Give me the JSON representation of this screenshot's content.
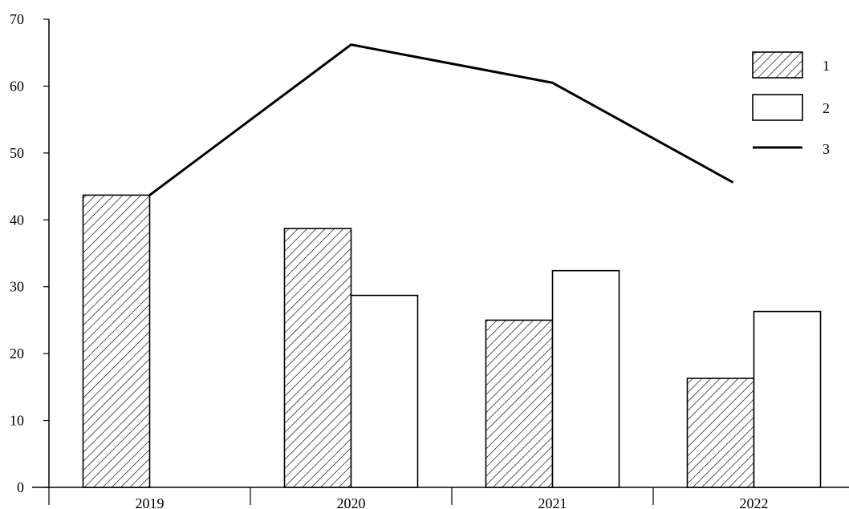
{
  "chart_data": {
    "type": "bar",
    "title": "",
    "xlabel": "",
    "ylabel": "",
    "categories": [
      "2019",
      "2020",
      "2021",
      "2022"
    ],
    "ylim": [
      0,
      70
    ],
    "yticks": [
      0,
      10,
      20,
      30,
      40,
      50,
      60,
      70
    ],
    "grid": false,
    "legend_position": "top-right",
    "series": [
      {
        "name": "1",
        "kind": "bar",
        "style": "hatched",
        "values": [
          43.7,
          38.7,
          25.0,
          16.3
        ]
      },
      {
        "name": "2",
        "kind": "bar",
        "style": "open",
        "values": [
          null,
          28.7,
          32.4,
          26.3
        ]
      },
      {
        "name": "3",
        "kind": "line",
        "style": "solid",
        "values": [
          43.7,
          66.2,
          60.5,
          45.6
        ]
      }
    ]
  }
}
